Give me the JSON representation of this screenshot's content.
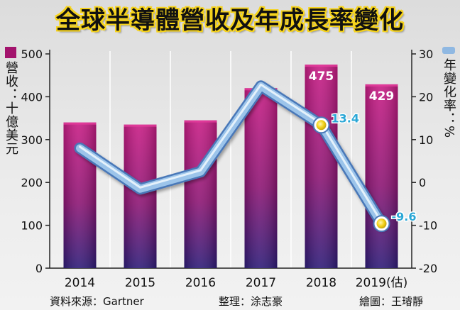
{
  "title": "全球半導體營收及年成長率變化",
  "left_axis_label": "營收：十億美元",
  "right_axis_label": "年變化率：%",
  "footer": {
    "source": "資料來源：Gartner",
    "editor": "整理：涂志豪",
    "artist": "繪圖：王璿靜"
  },
  "colors": {
    "bar": "#9a1670",
    "bar_light": "#c0197e",
    "bar_dark": "#3a1a7a",
    "line": "#9cc4ea",
    "line_border": "#4a78b8",
    "marker": "#f3d21a",
    "annotation": "#2aa7d6",
    "title_fill": "#f6d31c"
  },
  "chart_data": {
    "type": "bar+line",
    "categories": [
      "2014",
      "2015",
      "2016",
      "2017",
      "2018",
      "2019(估)"
    ],
    "series": [
      {
        "name": "營收",
        "type": "bar",
        "axis": "left",
        "values": [
          340,
          335,
          345,
          420,
          475,
          429
        ],
        "data_labels": [
          "",
          "",
          "",
          "",
          "475",
          "429"
        ]
      },
      {
        "name": "年變化率",
        "type": "line",
        "axis": "right",
        "values": [
          8,
          -1.5,
          2.5,
          22.5,
          13.4,
          -9.6
        ],
        "data_labels": [
          "",
          "",
          "",
          "",
          "13.4",
          "-9.6"
        ],
        "markers": [
          false,
          false,
          false,
          false,
          true,
          true
        ]
      }
    ],
    "left_axis": {
      "min": 0,
      "max": 500,
      "ticks": [
        "0",
        "100",
        "200",
        "300",
        "400",
        "500"
      ]
    },
    "right_axis": {
      "min": -20,
      "max": 30,
      "ticks": [
        "-20",
        "-10",
        "0",
        "10",
        "20",
        "30"
      ]
    },
    "grid": "vertical"
  }
}
